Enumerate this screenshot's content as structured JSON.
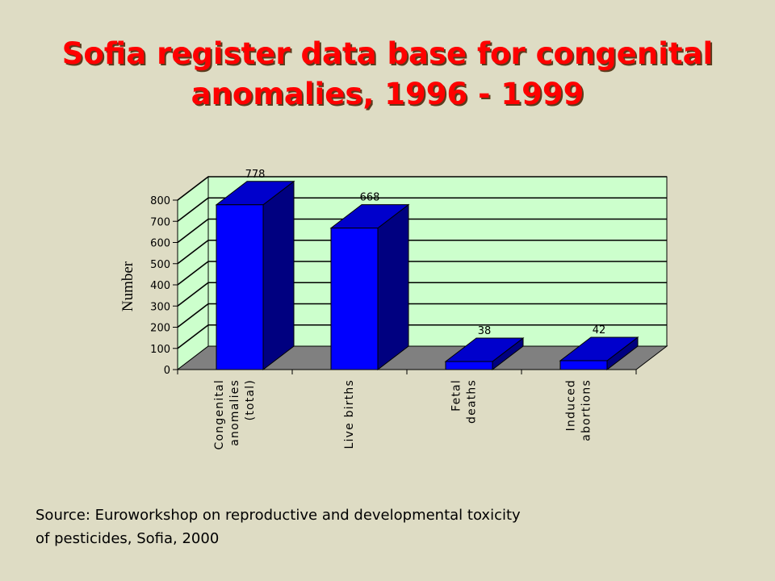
{
  "title": {
    "line1": "Sofia register data base for congenital",
    "line2": "anomalies, 1996 - 1999"
  },
  "source": {
    "line1": "Source: Euroworkshop on reproductive and developmental toxicity",
    "line2": "of pesticides, Sofia, 2000"
  },
  "colors": {
    "background": "#dedcc4",
    "title": "#ff0000",
    "plot_wall": "#ccffcc",
    "floor": "#808080",
    "bar_front": "#0000ff",
    "bar_side": "#000080",
    "bar_top": "#0000cc"
  },
  "chart_data": {
    "type": "bar",
    "style": "3d-column",
    "categories": [
      [
        "Congenital",
        "anomalies",
        "(total)"
      ],
      [
        "Live births"
      ],
      [
        "Fetal",
        "deaths"
      ],
      [
        "Induced",
        "abortions"
      ]
    ],
    "values": [
      778,
      668,
      38,
      42
    ],
    "data_labels": [
      "778",
      "668",
      "38",
      "42"
    ],
    "ylabel": "Number",
    "ylim": [
      0,
      800
    ],
    "yticks": [
      0,
      100,
      200,
      300,
      400,
      500,
      600,
      700,
      800
    ],
    "grid": true,
    "legend": "none"
  }
}
